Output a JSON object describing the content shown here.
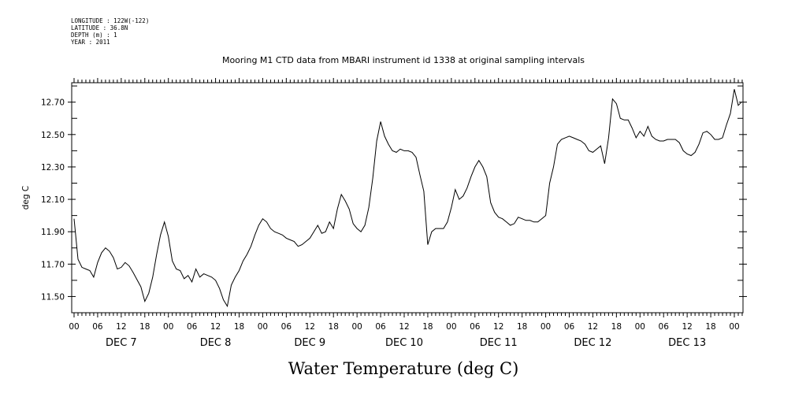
{
  "header": {
    "longitude": "LONGITUDE : 122W(-122)",
    "latitude": "LATITUDE : 36.8N",
    "depth": "DEPTH (m) : 1",
    "year": "YEAR : 2011"
  },
  "chart_data": {
    "type": "line",
    "title": "Mooring M1 CTD data from MBARI instrument id 1338 at original sampling intervals",
    "xlabel": "Water Temperature (deg C)",
    "ylabel": "deg C",
    "ylim": [
      11.4,
      12.82
    ],
    "yticks": [
      11.5,
      11.7,
      11.9,
      12.1,
      12.3,
      12.5,
      12.7
    ],
    "ytick_labels": [
      "11.50",
      "11.70",
      "11.90",
      "12.10",
      "12.30",
      "12.50",
      "12.70"
    ],
    "xlim_hours": [
      0,
      170
    ],
    "hour_tick_labels": [
      "00",
      "06",
      "12",
      "18",
      "00",
      "06",
      "12",
      "18",
      "00",
      "06",
      "12",
      "18",
      "00",
      "06",
      "12",
      "18",
      "00",
      "06",
      "12",
      "18",
      "00",
      "06",
      "12",
      "18",
      "00",
      "06",
      "12",
      "18",
      "00"
    ],
    "day_labels": [
      "DEC  7",
      "DEC  8",
      "DEC  9",
      "DEC 10",
      "DEC 11",
      "DEC 12",
      "DEC 13"
    ],
    "x_unit": "hours since DEC 7 00:00",
    "series": [
      {
        "name": "",
        "color": "#000000",
        "points": [
          [
            0,
            11.98
          ],
          [
            1,
            11.73
          ],
          [
            2,
            11.68
          ],
          [
            3,
            11.67
          ],
          [
            4,
            11.66
          ],
          [
            5,
            11.62
          ],
          [
            6,
            11.71
          ],
          [
            7,
            11.77
          ],
          [
            8,
            11.8
          ],
          [
            9,
            11.78
          ],
          [
            10,
            11.74
          ],
          [
            11,
            11.67
          ],
          [
            12,
            11.68
          ],
          [
            13,
            11.71
          ],
          [
            14,
            11.69
          ],
          [
            15,
            11.65
          ],
          [
            17,
            11.56
          ],
          [
            18,
            11.47
          ],
          [
            19,
            11.52
          ],
          [
            20,
            11.62
          ],
          [
            21,
            11.76
          ],
          [
            22,
            11.88
          ],
          [
            23,
            11.96
          ],
          [
            24,
            11.87
          ],
          [
            25,
            11.72
          ],
          [
            26,
            11.67
          ],
          [
            27,
            11.66
          ],
          [
            28,
            11.61
          ],
          [
            29,
            11.63
          ],
          [
            30,
            11.59
          ],
          [
            31,
            11.67
          ],
          [
            32,
            11.62
          ],
          [
            33,
            11.64
          ],
          [
            34,
            11.63
          ],
          [
            35,
            11.62
          ],
          [
            36,
            11.6
          ],
          [
            37,
            11.55
          ],
          [
            38,
            11.48
          ],
          [
            39,
            11.44
          ],
          [
            40,
            11.57
          ],
          [
            41,
            11.62
          ],
          [
            42,
            11.66
          ],
          [
            43,
            11.72
          ],
          [
            44,
            11.76
          ],
          [
            45,
            11.81
          ],
          [
            46,
            11.88
          ],
          [
            47,
            11.94
          ],
          [
            48,
            11.98
          ],
          [
            49,
            11.96
          ],
          [
            50,
            11.92
          ],
          [
            51,
            11.9
          ],
          [
            52,
            11.89
          ],
          [
            53,
            11.88
          ],
          [
            54,
            11.86
          ],
          [
            55,
            11.85
          ],
          [
            56,
            11.84
          ],
          [
            57,
            11.81
          ],
          [
            58,
            11.82
          ],
          [
            59,
            11.84
          ],
          [
            60,
            11.86
          ],
          [
            61,
            11.9
          ],
          [
            62,
            11.94
          ],
          [
            63,
            11.89
          ],
          [
            64,
            11.9
          ],
          [
            65,
            11.96
          ],
          [
            66,
            11.92
          ],
          [
            67,
            12.04
          ],
          [
            68,
            12.13
          ],
          [
            69,
            12.09
          ],
          [
            70,
            12.04
          ],
          [
            71,
            11.95
          ],
          [
            72,
            11.92
          ],
          [
            73,
            11.9
          ],
          [
            74,
            11.94
          ],
          [
            75,
            12.05
          ],
          [
            76,
            12.23
          ],
          [
            77,
            12.46
          ],
          [
            78,
            12.58
          ],
          [
            79,
            12.49
          ],
          [
            80,
            12.44
          ],
          [
            81,
            12.4
          ],
          [
            82,
            12.39
          ],
          [
            83,
            12.41
          ],
          [
            84,
            12.4
          ],
          [
            85,
            12.4
          ],
          [
            86,
            12.39
          ],
          [
            87,
            12.36
          ],
          [
            88,
            12.25
          ],
          [
            89,
            12.15
          ],
          [
            90,
            11.82
          ],
          [
            91,
            11.9
          ],
          [
            92,
            11.92
          ],
          [
            93,
            11.92
          ],
          [
            94,
            11.92
          ],
          [
            95,
            11.96
          ],
          [
            96,
            12.05
          ],
          [
            97,
            12.16
          ],
          [
            98,
            12.1
          ],
          [
            99,
            12.12
          ],
          [
            100,
            12.17
          ],
          [
            101,
            12.24
          ],
          [
            102,
            12.3
          ],
          [
            103,
            12.34
          ],
          [
            104,
            12.3
          ],
          [
            105,
            12.24
          ],
          [
            106,
            12.08
          ],
          [
            107,
            12.02
          ],
          [
            108,
            11.99
          ],
          [
            109,
            11.98
          ],
          [
            110,
            11.96
          ],
          [
            111,
            11.94
          ],
          [
            112,
            11.95
          ],
          [
            113,
            11.99
          ],
          [
            114,
            11.98
          ],
          [
            115,
            11.97
          ],
          [
            116,
            11.97
          ],
          [
            117,
            11.96
          ],
          [
            118,
            11.96
          ],
          [
            119,
            11.98
          ],
          [
            120,
            12.0
          ],
          [
            121,
            12.2
          ],
          [
            122,
            12.3
          ],
          [
            123,
            12.44
          ],
          [
            124,
            12.47
          ],
          [
            125,
            12.48
          ],
          [
            126,
            12.49
          ],
          [
            127,
            12.48
          ],
          [
            128,
            12.47
          ],
          [
            129,
            12.46
          ],
          [
            130,
            12.44
          ],
          [
            131,
            12.4
          ],
          [
            132,
            12.39
          ],
          [
            133,
            12.41
          ],
          [
            134,
            12.43
          ],
          [
            135,
            12.32
          ],
          [
            136,
            12.48
          ],
          [
            137,
            12.72
          ],
          [
            138,
            12.69
          ],
          [
            139,
            12.6
          ],
          [
            140,
            12.59
          ],
          [
            141,
            12.59
          ],
          [
            142,
            12.54
          ],
          [
            143,
            12.48
          ],
          [
            144,
            12.52
          ],
          [
            145,
            12.49
          ],
          [
            146,
            12.55
          ],
          [
            147,
            12.49
          ],
          [
            148,
            12.47
          ],
          [
            149,
            12.46
          ],
          [
            150,
            12.46
          ],
          [
            151,
            12.47
          ],
          [
            152,
            12.47
          ],
          [
            153,
            12.47
          ],
          [
            154,
            12.45
          ],
          [
            155,
            12.4
          ],
          [
            156,
            12.38
          ],
          [
            157,
            12.37
          ],
          [
            158,
            12.39
          ],
          [
            159,
            12.44
          ],
          [
            160,
            12.51
          ],
          [
            161,
            12.52
          ],
          [
            162,
            12.5
          ],
          [
            163,
            12.47
          ],
          [
            164,
            12.47
          ],
          [
            165,
            12.48
          ],
          [
            166,
            12.56
          ],
          [
            167,
            12.63
          ],
          [
            168,
            12.78
          ],
          [
            169,
            12.68
          ],
          [
            170,
            12.7
          ]
        ]
      }
    ]
  }
}
